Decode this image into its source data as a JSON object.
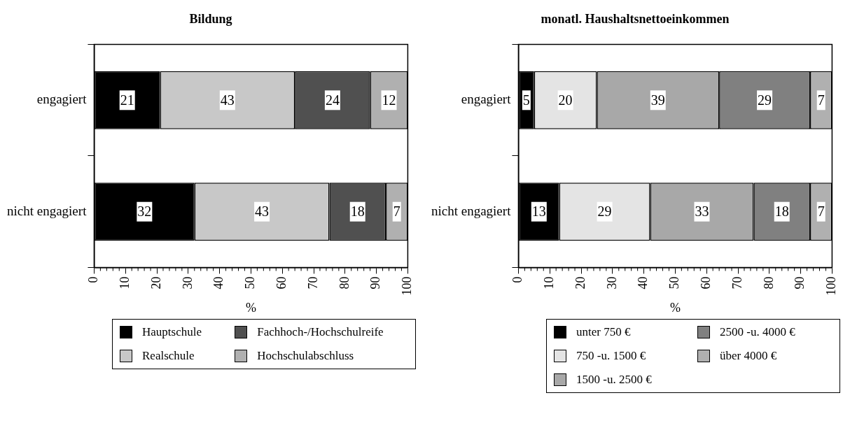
{
  "chart_data": [
    {
      "type": "bar",
      "orientation": "horizontal",
      "stacked": true,
      "title": "Bildung",
      "xlabel": "%",
      "categories": [
        "engagiert",
        "nicht engagiert"
      ],
      "series": [
        {
          "name": "Hauptschule",
          "color": "#000000",
          "values": [
            21,
            32
          ]
        },
        {
          "name": "Realschule",
          "color": "#c8c8c8",
          "values": [
            43,
            43
          ]
        },
        {
          "name": "Fachhoch-/Hochschulreife",
          "color": "#505050",
          "values": [
            24,
            18
          ]
        },
        {
          "name": "Hochschulabschluss",
          "color": "#b0b0b0",
          "values": [
            12,
            7
          ]
        }
      ],
      "xlim": [
        0,
        100
      ],
      "xticks": [
        0,
        10,
        20,
        30,
        40,
        50,
        60,
        70,
        80,
        90,
        100
      ],
      "data_labels": true,
      "grid": false,
      "legend": "bottom"
    },
    {
      "type": "bar",
      "orientation": "horizontal",
      "stacked": true,
      "title": "monatl. Haushaltsnettoeinkommen",
      "xlabel": "%",
      "categories": [
        "engagiert",
        "nicht engagiert"
      ],
      "series": [
        {
          "name": "unter 750 €",
          "color": "#000000",
          "values": [
            5,
            13
          ]
        },
        {
          "name": "750 -u. 1500 €",
          "color": "#e4e4e4",
          "values": [
            20,
            29
          ]
        },
        {
          "name": "1500 -u. 2500 €",
          "color": "#a8a8a8",
          "values": [
            39,
            33
          ]
        },
        {
          "name": "2500 -u. 4000 €",
          "color": "#808080",
          "values": [
            29,
            18
          ]
        },
        {
          "name": "über 4000 €",
          "color": "#b0b0b0",
          "values": [
            7,
            7
          ]
        }
      ],
      "xlim": [
        0,
        100
      ],
      "xticks": [
        0,
        10,
        20,
        30,
        40,
        50,
        60,
        70,
        80,
        90,
        100
      ],
      "data_labels": true,
      "grid": false,
      "legend": "bottom"
    }
  ]
}
